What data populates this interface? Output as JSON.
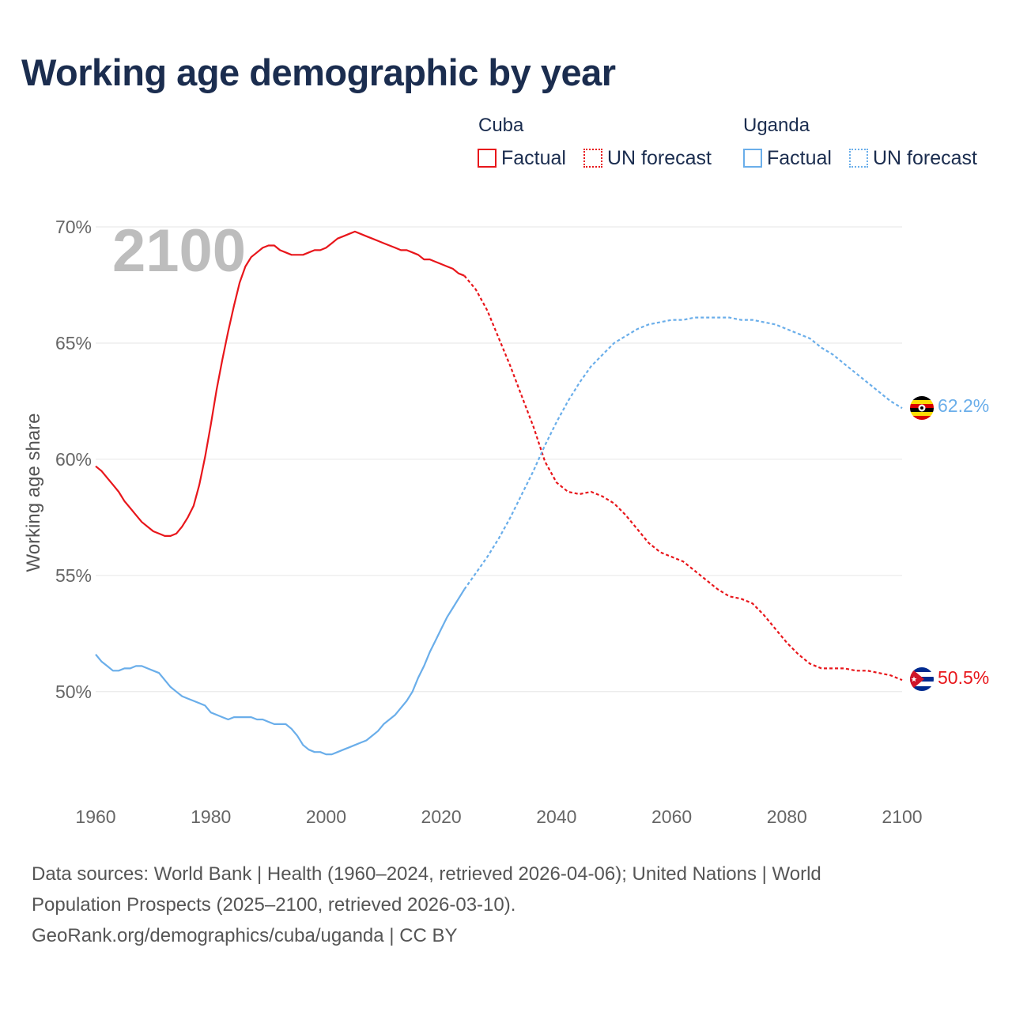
{
  "title": "Working age demographic by year",
  "legend": {
    "groups": [
      {
        "name": "Cuba",
        "factual_label": "Factual",
        "forecast_label": "UN forecast",
        "color": "#e8161b"
      },
      {
        "name": "Uganda",
        "factual_label": "Factual",
        "forecast_label": "UN forecast",
        "color": "#6aaeea"
      }
    ]
  },
  "year_overlay": "2100",
  "footer": {
    "line1": "Data sources: World Bank | Health (1960–2024, retrieved 2026-04-06); United Nations | World",
    "line2": "Population Prospects (2025–2100, retrieved 2026-03-10).",
    "line3": "GeoRank.org/demographics/cuba/uganda | CC BY"
  },
  "chart_data": {
    "type": "line",
    "title": "Working age demographic by year",
    "xlabel": "",
    "ylabel": "Working age share",
    "xlim": [
      1960,
      2100
    ],
    "ylim": [
      45.5,
      70
    ],
    "x_ticks": [
      1960,
      1980,
      2000,
      2020,
      2040,
      2060,
      2080,
      2100
    ],
    "y_ticks": [
      {
        "value": 50,
        "label": "50%"
      },
      {
        "value": 55,
        "label": "55%"
      },
      {
        "value": 60,
        "label": "60%"
      },
      {
        "value": 65,
        "label": "65%"
      },
      {
        "value": 70,
        "label": "70%"
      }
    ],
    "grid": true,
    "series": [
      {
        "name": "Cuba",
        "color": "#e8161b",
        "end_label": "50.5%",
        "factual": {
          "x": [
            1960,
            1961,
            1962,
            1963,
            1964,
            1965,
            1966,
            1967,
            1968,
            1969,
            1970,
            1971,
            1972,
            1973,
            1974,
            1975,
            1976,
            1977,
            1978,
            1979,
            1980,
            1981,
            1982,
            1983,
            1984,
            1985,
            1986,
            1987,
            1988,
            1989,
            1990,
            1991,
            1992,
            1993,
            1994,
            1995,
            1996,
            1997,
            1998,
            1999,
            2000,
            2001,
            2002,
            2003,
            2004,
            2005,
            2006,
            2007,
            2008,
            2009,
            2010,
            2011,
            2012,
            2013,
            2014,
            2015,
            2016,
            2017,
            2018,
            2019,
            2020,
            2021,
            2022,
            2023,
            2024
          ],
          "y": [
            59.7,
            59.5,
            59.2,
            58.9,
            58.6,
            58.2,
            57.9,
            57.6,
            57.3,
            57.1,
            56.9,
            56.8,
            56.7,
            56.7,
            56.8,
            57.1,
            57.5,
            58.0,
            58.9,
            60.1,
            61.5,
            63.0,
            64.3,
            65.5,
            66.6,
            67.6,
            68.3,
            68.7,
            68.9,
            69.1,
            69.2,
            69.2,
            69.0,
            68.9,
            68.8,
            68.8,
            68.8,
            68.9,
            69.0,
            69.0,
            69.1,
            69.3,
            69.5,
            69.6,
            69.7,
            69.8,
            69.7,
            69.6,
            69.5,
            69.4,
            69.3,
            69.2,
            69.1,
            69.0,
            69.0,
            68.9,
            68.8,
            68.6,
            68.6,
            68.5,
            68.4,
            68.3,
            68.2,
            68.0,
            67.9
          ]
        },
        "forecast": {
          "x": [
            2024,
            2026,
            2028,
            2030,
            2032,
            2034,
            2036,
            2038,
            2040,
            2042,
            2044,
            2046,
            2048,
            2050,
            2052,
            2054,
            2056,
            2058,
            2060,
            2062,
            2064,
            2066,
            2068,
            2070,
            2072,
            2074,
            2076,
            2078,
            2080,
            2082,
            2084,
            2086,
            2088,
            2090,
            2092,
            2094,
            2096,
            2098,
            2100
          ],
          "y": [
            67.9,
            67.3,
            66.4,
            65.2,
            64.0,
            62.7,
            61.4,
            59.9,
            59.0,
            58.6,
            58.5,
            58.6,
            58.4,
            58.1,
            57.6,
            57.0,
            56.4,
            56.0,
            55.8,
            55.6,
            55.2,
            54.8,
            54.4,
            54.1,
            54.0,
            53.8,
            53.3,
            52.7,
            52.1,
            51.6,
            51.2,
            51.0,
            51.0,
            51.0,
            50.9,
            50.9,
            50.8,
            50.7,
            50.5
          ]
        }
      },
      {
        "name": "Uganda",
        "color": "#6aaeea",
        "end_label": "62.2%",
        "factual": {
          "x": [
            1960,
            1961,
            1962,
            1963,
            1964,
            1965,
            1966,
            1967,
            1968,
            1969,
            1970,
            1971,
            1972,
            1973,
            1974,
            1975,
            1976,
            1977,
            1978,
            1979,
            1980,
            1981,
            1982,
            1983,
            1984,
            1985,
            1986,
            1987,
            1988,
            1989,
            1990,
            1991,
            1992,
            1993,
            1994,
            1995,
            1996,
            1997,
            1998,
            1999,
            2000,
            2001,
            2002,
            2003,
            2004,
            2005,
            2006,
            2007,
            2008,
            2009,
            2010,
            2011,
            2012,
            2013,
            2014,
            2015,
            2016,
            2017,
            2018,
            2019,
            2020,
            2021,
            2022,
            2023,
            2024
          ],
          "y": [
            51.6,
            51.3,
            51.1,
            50.9,
            50.9,
            51.0,
            51.0,
            51.1,
            51.1,
            51.0,
            50.9,
            50.8,
            50.5,
            50.2,
            50.0,
            49.8,
            49.7,
            49.6,
            49.5,
            49.4,
            49.1,
            49.0,
            48.9,
            48.8,
            48.9,
            48.9,
            48.9,
            48.9,
            48.8,
            48.8,
            48.7,
            48.6,
            48.6,
            48.6,
            48.4,
            48.1,
            47.7,
            47.5,
            47.4,
            47.4,
            47.3,
            47.3,
            47.4,
            47.5,
            47.6,
            47.7,
            47.8,
            47.9,
            48.1,
            48.3,
            48.6,
            48.8,
            49.0,
            49.3,
            49.6,
            50.0,
            50.6,
            51.1,
            51.7,
            52.2,
            52.7,
            53.2,
            53.6,
            54.0,
            54.4
          ]
        },
        "forecast": {
          "x": [
            2024,
            2026,
            2028,
            2030,
            2032,
            2034,
            2036,
            2038,
            2040,
            2042,
            2044,
            2046,
            2048,
            2050,
            2052,
            2054,
            2056,
            2058,
            2060,
            2062,
            2064,
            2066,
            2068,
            2070,
            2072,
            2074,
            2076,
            2078,
            2080,
            2082,
            2084,
            2086,
            2088,
            2090,
            2092,
            2094,
            2096,
            2098,
            2100
          ],
          "y": [
            54.4,
            55.1,
            55.8,
            56.6,
            57.5,
            58.5,
            59.5,
            60.6,
            61.6,
            62.5,
            63.3,
            64.0,
            64.5,
            65.0,
            65.3,
            65.6,
            65.8,
            65.9,
            66.0,
            66.0,
            66.1,
            66.1,
            66.1,
            66.1,
            66.0,
            66.0,
            65.9,
            65.8,
            65.6,
            65.4,
            65.2,
            64.8,
            64.5,
            64.1,
            63.7,
            63.3,
            62.9,
            62.5,
            62.2
          ]
        }
      }
    ]
  }
}
